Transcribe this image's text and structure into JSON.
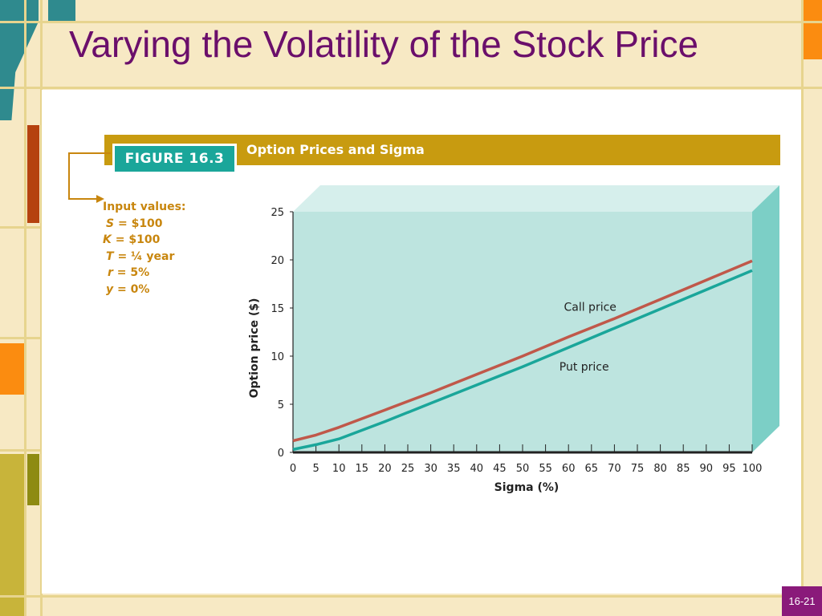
{
  "slide": {
    "title": "Varying the Volatility of the Stock Price",
    "page_number": "16-21"
  },
  "figure": {
    "label": "FIGURE 16.3",
    "title": "Option Prices and Sigma",
    "inputs_heading": "Input values:",
    "inputs": [
      {
        "var": "S",
        "value": "= $100"
      },
      {
        "var": "K",
        "value": "= $100"
      },
      {
        "var": "T",
        "value": "= ¼ year"
      },
      {
        "var": "r",
        "value": "= 5%"
      },
      {
        "var": "y",
        "value": "= 0%"
      }
    ]
  },
  "colors": {
    "title": "#6b0f6b",
    "banner": "#c89b10",
    "tag": "#1aa69a",
    "inputs_text": "#c8860e",
    "plot_face": "#bde4df",
    "plot_top": "#d6efec",
    "plot_side": "#7ccfc6",
    "call_line": "#c0584a",
    "put_line": "#1aa69a",
    "page_badge": "#8a1a7a"
  },
  "chart_data": {
    "type": "line",
    "title": "",
    "xlabel": "Sigma (%)",
    "ylabel": "Option price ($)",
    "xlim": [
      0,
      100
    ],
    "ylim": [
      0,
      25
    ],
    "x_ticks": [
      0,
      5,
      10,
      15,
      20,
      25,
      30,
      35,
      40,
      45,
      50,
      55,
      60,
      65,
      70,
      75,
      80,
      85,
      90,
      95,
      100
    ],
    "y_ticks": [
      0,
      5,
      10,
      15,
      20,
      25
    ],
    "series": [
      {
        "name": "Call price",
        "x": [
          0,
          5,
          10,
          20,
          30,
          40,
          50,
          60,
          70,
          80,
          90,
          100
        ],
        "values": [
          1.2,
          1.8,
          2.6,
          4.4,
          6.2,
          8.1,
          10.0,
          12.0,
          13.9,
          15.9,
          17.9,
          19.9
        ]
      },
      {
        "name": "Put price",
        "x": [
          0,
          5,
          10,
          20,
          30,
          40,
          50,
          60,
          70,
          80,
          90,
          100
        ],
        "values": [
          0.3,
          0.8,
          1.4,
          3.2,
          5.1,
          7.0,
          8.9,
          10.9,
          12.9,
          14.9,
          16.9,
          18.9
        ]
      }
    ],
    "annotations": [
      {
        "text": "Call price",
        "x": 59,
        "y": 14.7
      },
      {
        "text": "Put price",
        "x": 58,
        "y": 8.5
      }
    ],
    "grid": false,
    "legend": "none"
  }
}
